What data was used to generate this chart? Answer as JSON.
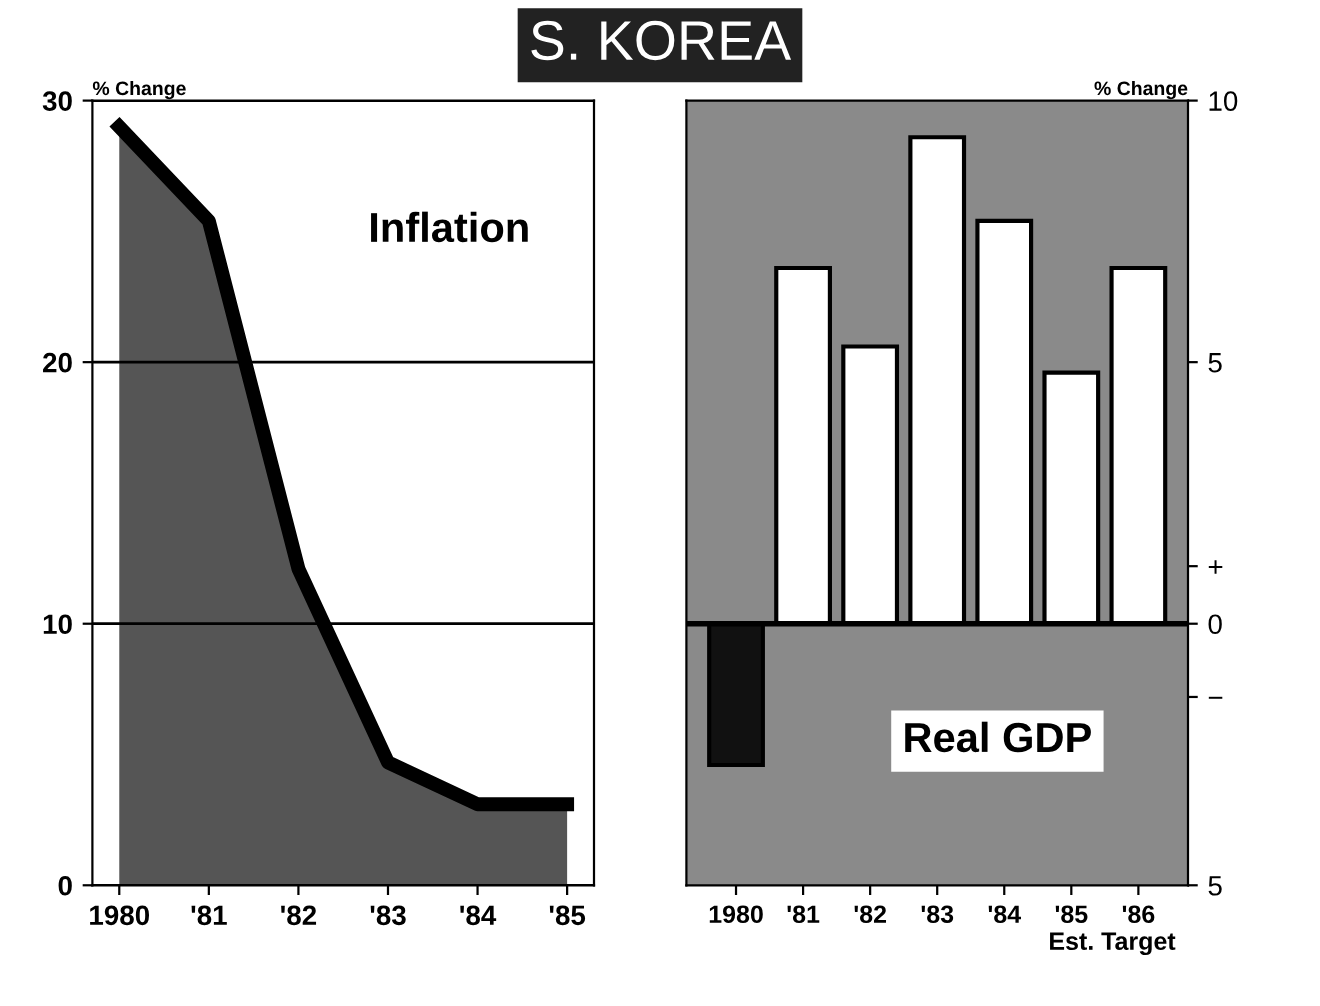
{
  "chart_data": [
    {
      "type": "area",
      "title": "S. KOREA",
      "ylabel": "% Change",
      "annotations": [
        "Inflation"
      ],
      "categories": [
        "1980",
        "'81",
        "'82",
        "'83",
        "'84",
        "'85"
      ],
      "series": [
        {
          "color": "#555555",
          "values": [
            29.0,
            25.4,
            12.1,
            4.7,
            3.1,
            3.1
          ]
        }
      ],
      "ylim": [
        0,
        30
      ],
      "yticks": [
        0,
        10,
        20,
        30
      ],
      "grid": "y"
    },
    {
      "type": "bar",
      "ylabel": "% Change",
      "annotations": [
        "Real GDP"
      ],
      "categories": [
        "1980",
        "'81",
        "'82",
        "'83",
        "'84",
        "'85\nEst.",
        "'86\nTarget"
      ],
      "values": [
        -2.7,
        6.8,
        5.3,
        9.3,
        7.7,
        4.8,
        6.8
      ],
      "colors": [
        "#111111",
        "#ffffff",
        "#ffffff",
        "#ffffff",
        "#ffffff",
        "#ffffff",
        "#ffffff"
      ],
      "ylim": [
        -5,
        10
      ],
      "yticks": [
        10,
        5,
        {
          "value": 1.1,
          "label": "+"
        },
        0,
        {
          "value": -1.4,
          "label": "−"
        },
        {
          "value": -5,
          "label": "5"
        }
      ]
    }
  ]
}
